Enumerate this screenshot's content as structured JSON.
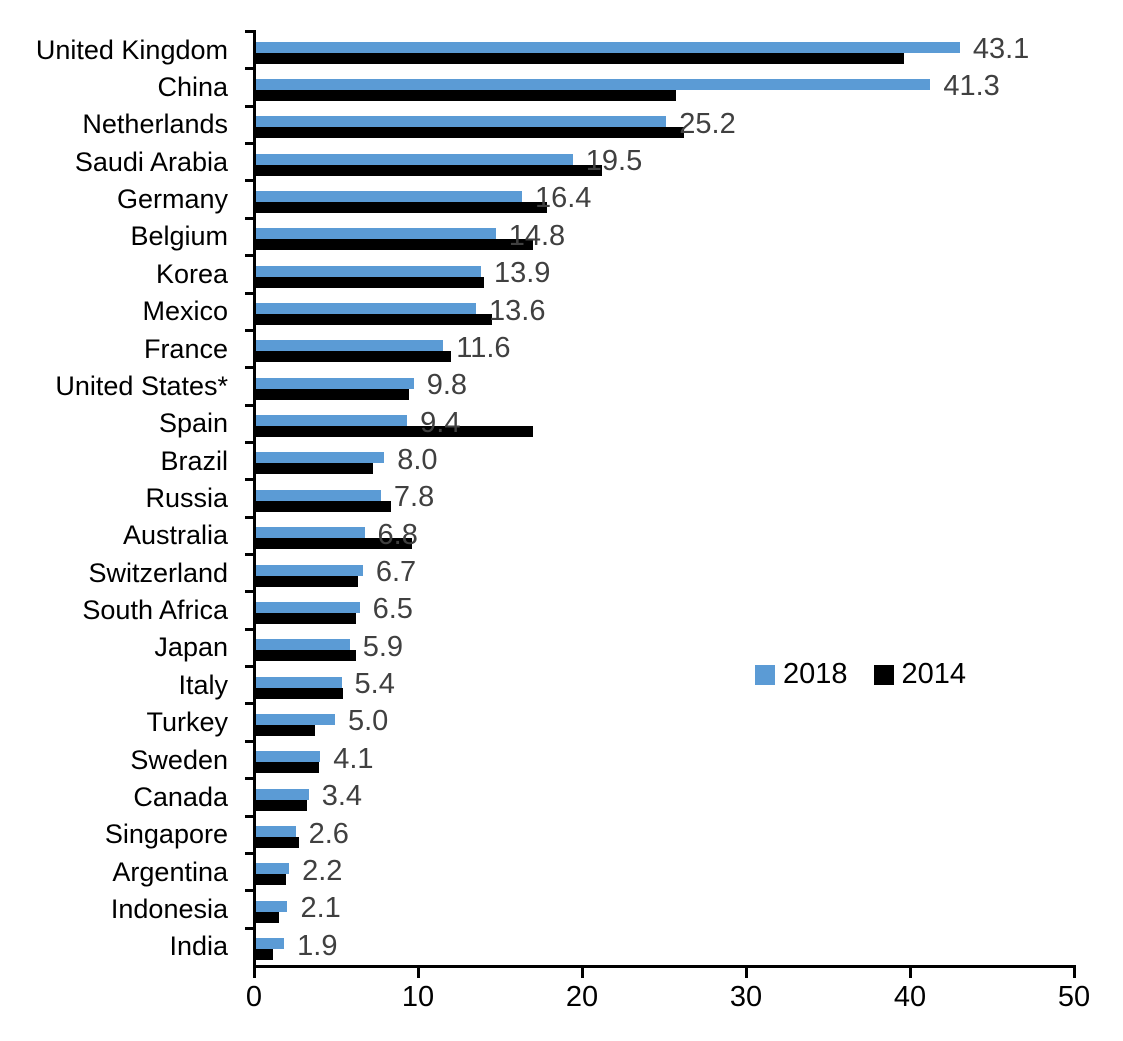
{
  "chart_data": {
    "type": "bar",
    "orientation": "horizontal",
    "title": "",
    "xlabel": "",
    "ylabel": "",
    "xlim": [
      0,
      50
    ],
    "x_ticks": [
      "0",
      "10",
      "20",
      "30",
      "40",
      "50"
    ],
    "grid": false,
    "legend_position": "middle-right",
    "categories": [
      "United Kingdom",
      "China",
      "Netherlands",
      "Saudi Arabia",
      "Germany",
      "Belgium",
      "Korea",
      "Mexico",
      "France",
      "United States*",
      "Spain",
      "Brazil",
      "Russia",
      "Australia",
      "Switzerland",
      "South Africa",
      "Japan",
      "Italy",
      "Turkey",
      "Sweden",
      "Canada",
      "Singapore",
      "Argentina",
      "Indonesia",
      "India"
    ],
    "series": [
      {
        "name": "2018",
        "color": "#5B9BD5",
        "values": [
          43.1,
          41.3,
          25.2,
          19.5,
          16.4,
          14.8,
          13.9,
          13.6,
          11.6,
          9.8,
          9.4,
          8.0,
          7.8,
          6.8,
          6.7,
          6.5,
          5.9,
          5.4,
          5.0,
          4.1,
          3.4,
          2.6,
          2.2,
          2.1,
          1.9
        ],
        "data_labels": [
          "43.1",
          "41.3",
          "25.2",
          "19.5",
          "16.4",
          "14.8",
          "13.9",
          "13.6",
          "11.6",
          "9.8",
          "9.4",
          "8.0",
          "7.8",
          "6.8",
          "6.7",
          "6.5",
          "5.9",
          "5.4",
          "5.0",
          "4.1",
          "3.4",
          "2.6",
          "2.2",
          "2.1",
          "1.9"
        ]
      },
      {
        "name": "2014",
        "color": "#000000",
        "values": [
          39.7,
          25.8,
          26.3,
          21.3,
          17.9,
          17.1,
          14.1,
          14.6,
          12.1,
          9.5,
          17.1,
          7.3,
          8.4,
          9.7,
          6.4,
          6.3,
          6.3,
          5.5,
          3.8,
          4.0,
          3.3,
          2.8,
          2.0,
          1.6,
          1.2
        ],
        "data_labels": []
      }
    ]
  },
  "legend": {
    "items": [
      {
        "label": "2018",
        "color": "#5B9BD5"
      },
      {
        "label": "2014",
        "color": "#000000"
      }
    ]
  },
  "colors": {
    "background": "#ffffff",
    "axis": "#000000",
    "value_label": "#404040",
    "series_2018": "#5B9BD5",
    "series_2014": "#000000"
  }
}
